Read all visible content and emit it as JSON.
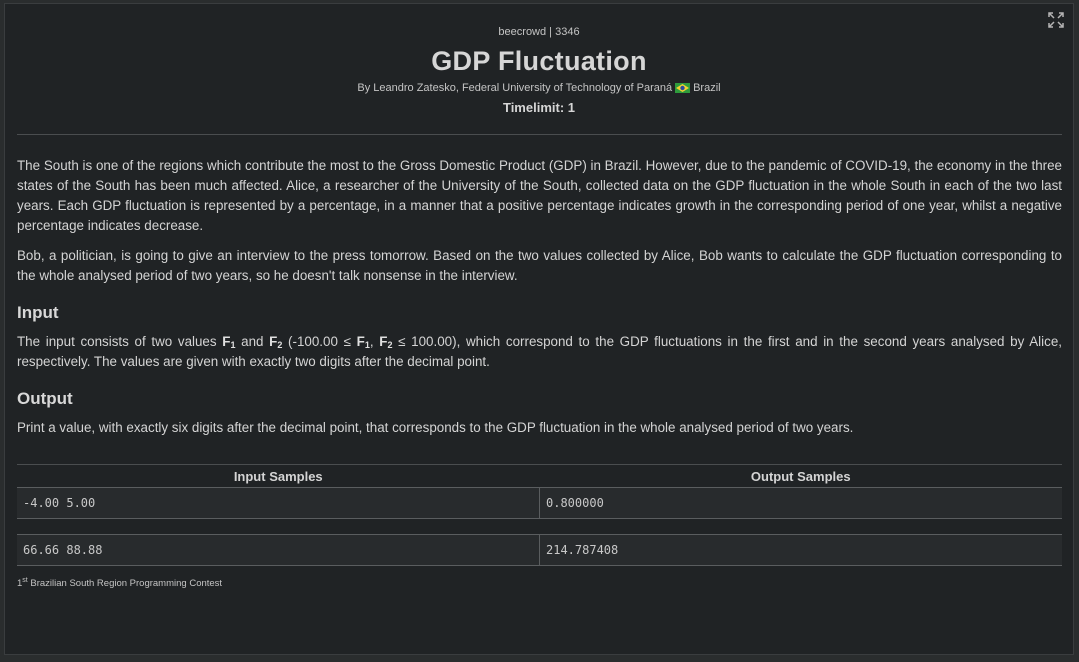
{
  "header": {
    "source": "beecrowd | 3346",
    "title": "GDP Fluctuation",
    "author": "By Leandro Zatesko, Federal University of Technology of Paraná",
    "country": "Brazil",
    "timelimit": "Timelimit: 1",
    "expand_icon": "expand-icon"
  },
  "description": {
    "p1": "The South is one of the regions which contribute the most to the Gross Domestic Product (GDP) in Brazil. However, due to the pandemic of COVID-19, the economy in the three states of the South has been much affected. Alice, a researcher of the University of the South, collected data on the GDP fluctuation in the whole South in each of the two last years. Each GDP fluctuation is represented by a percentage, in a manner that a positive percentage indicates growth in the corresponding period of one year, whilst a negative percentage indicates decrease.",
    "p2": "Bob, a politician, is going to give an interview to the press tomorrow. Based on the two values collected by Alice, Bob wants to calculate the GDP fluctuation corresponding to the whole analysed period of two years, so he doesn't talk nonsense in the interview."
  },
  "input_section": {
    "heading": "Input",
    "text_a": "The input consists of two values ",
    "var_f": "F",
    "sub_1": "1",
    "text_and": " and ",
    "sub_2": "2",
    "text_range_open": " (-100.00 ≤ ",
    "text_comma": ", ",
    "text_range_close": " ≤ 100.00), which correspond to the GDP fluctuations in the first and in the second years analysed by Alice, respectively. The values are given with exactly two digits after the decimal point."
  },
  "output_section": {
    "heading": "Output",
    "text": "Print a value, with exactly six digits after the decimal point, that corresponds to the GDP fluctuation in the whole analysed period of two years."
  },
  "samples": {
    "input_header": "Input Samples",
    "output_header": "Output Samples",
    "rows": [
      {
        "input": "-4.00 5.00",
        "output": "0.800000"
      },
      {
        "input": "66.66 88.88",
        "output": "214.787408"
      }
    ]
  },
  "footer": {
    "ordinal": "1",
    "ordinal_suffix": "st",
    "text": " Brazilian South Region Programming Contest"
  },
  "colors": {
    "background": "#202325",
    "text": "#d4d4d4",
    "flag_green": "#2e9b3c",
    "flag_yellow": "#f2d231",
    "flag_blue": "#2a4aa0"
  }
}
